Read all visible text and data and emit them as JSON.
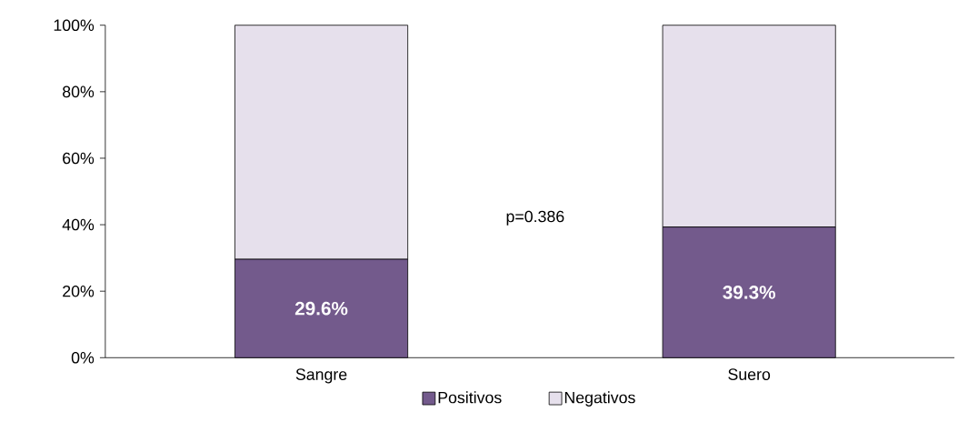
{
  "chart_data": {
    "type": "bar",
    "stacked": true,
    "categories": [
      "Sangre",
      "Suero"
    ],
    "series": [
      {
        "name": "Positivos",
        "color": "#735a8c",
        "values": [
          29.6,
          39.3
        ],
        "value_labels": [
          "29.6%",
          "39.3%"
        ]
      },
      {
        "name": "Negativos",
        "color": "#e6e0ec",
        "values": [
          70.4,
          60.7
        ]
      }
    ],
    "ylim": [
      0,
      100
    ],
    "yticks": [
      {
        "value": 0,
        "label": "0%"
      },
      {
        "value": 20,
        "label": "20%"
      },
      {
        "value": 40,
        "label": "40%"
      },
      {
        "value": 60,
        "label": "60%"
      },
      {
        "value": 80,
        "label": "80%"
      },
      {
        "value": 100,
        "label": "100%"
      }
    ],
    "annotations": [
      "p=0.386"
    ],
    "legend": "bottom",
    "grid": false
  }
}
